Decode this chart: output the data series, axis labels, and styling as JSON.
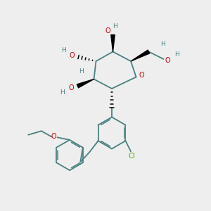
{
  "bg_color": "#eeeeee",
  "bond_color": "#4a8080",
  "red_color": "#cc0000",
  "green_color": "#44aa00",
  "black_color": "#000000",
  "fig_w": 3.0,
  "fig_h": 3.0,
  "dpi": 100,
  "xlim": [
    0,
    10
  ],
  "ylim": [
    0,
    10
  ]
}
